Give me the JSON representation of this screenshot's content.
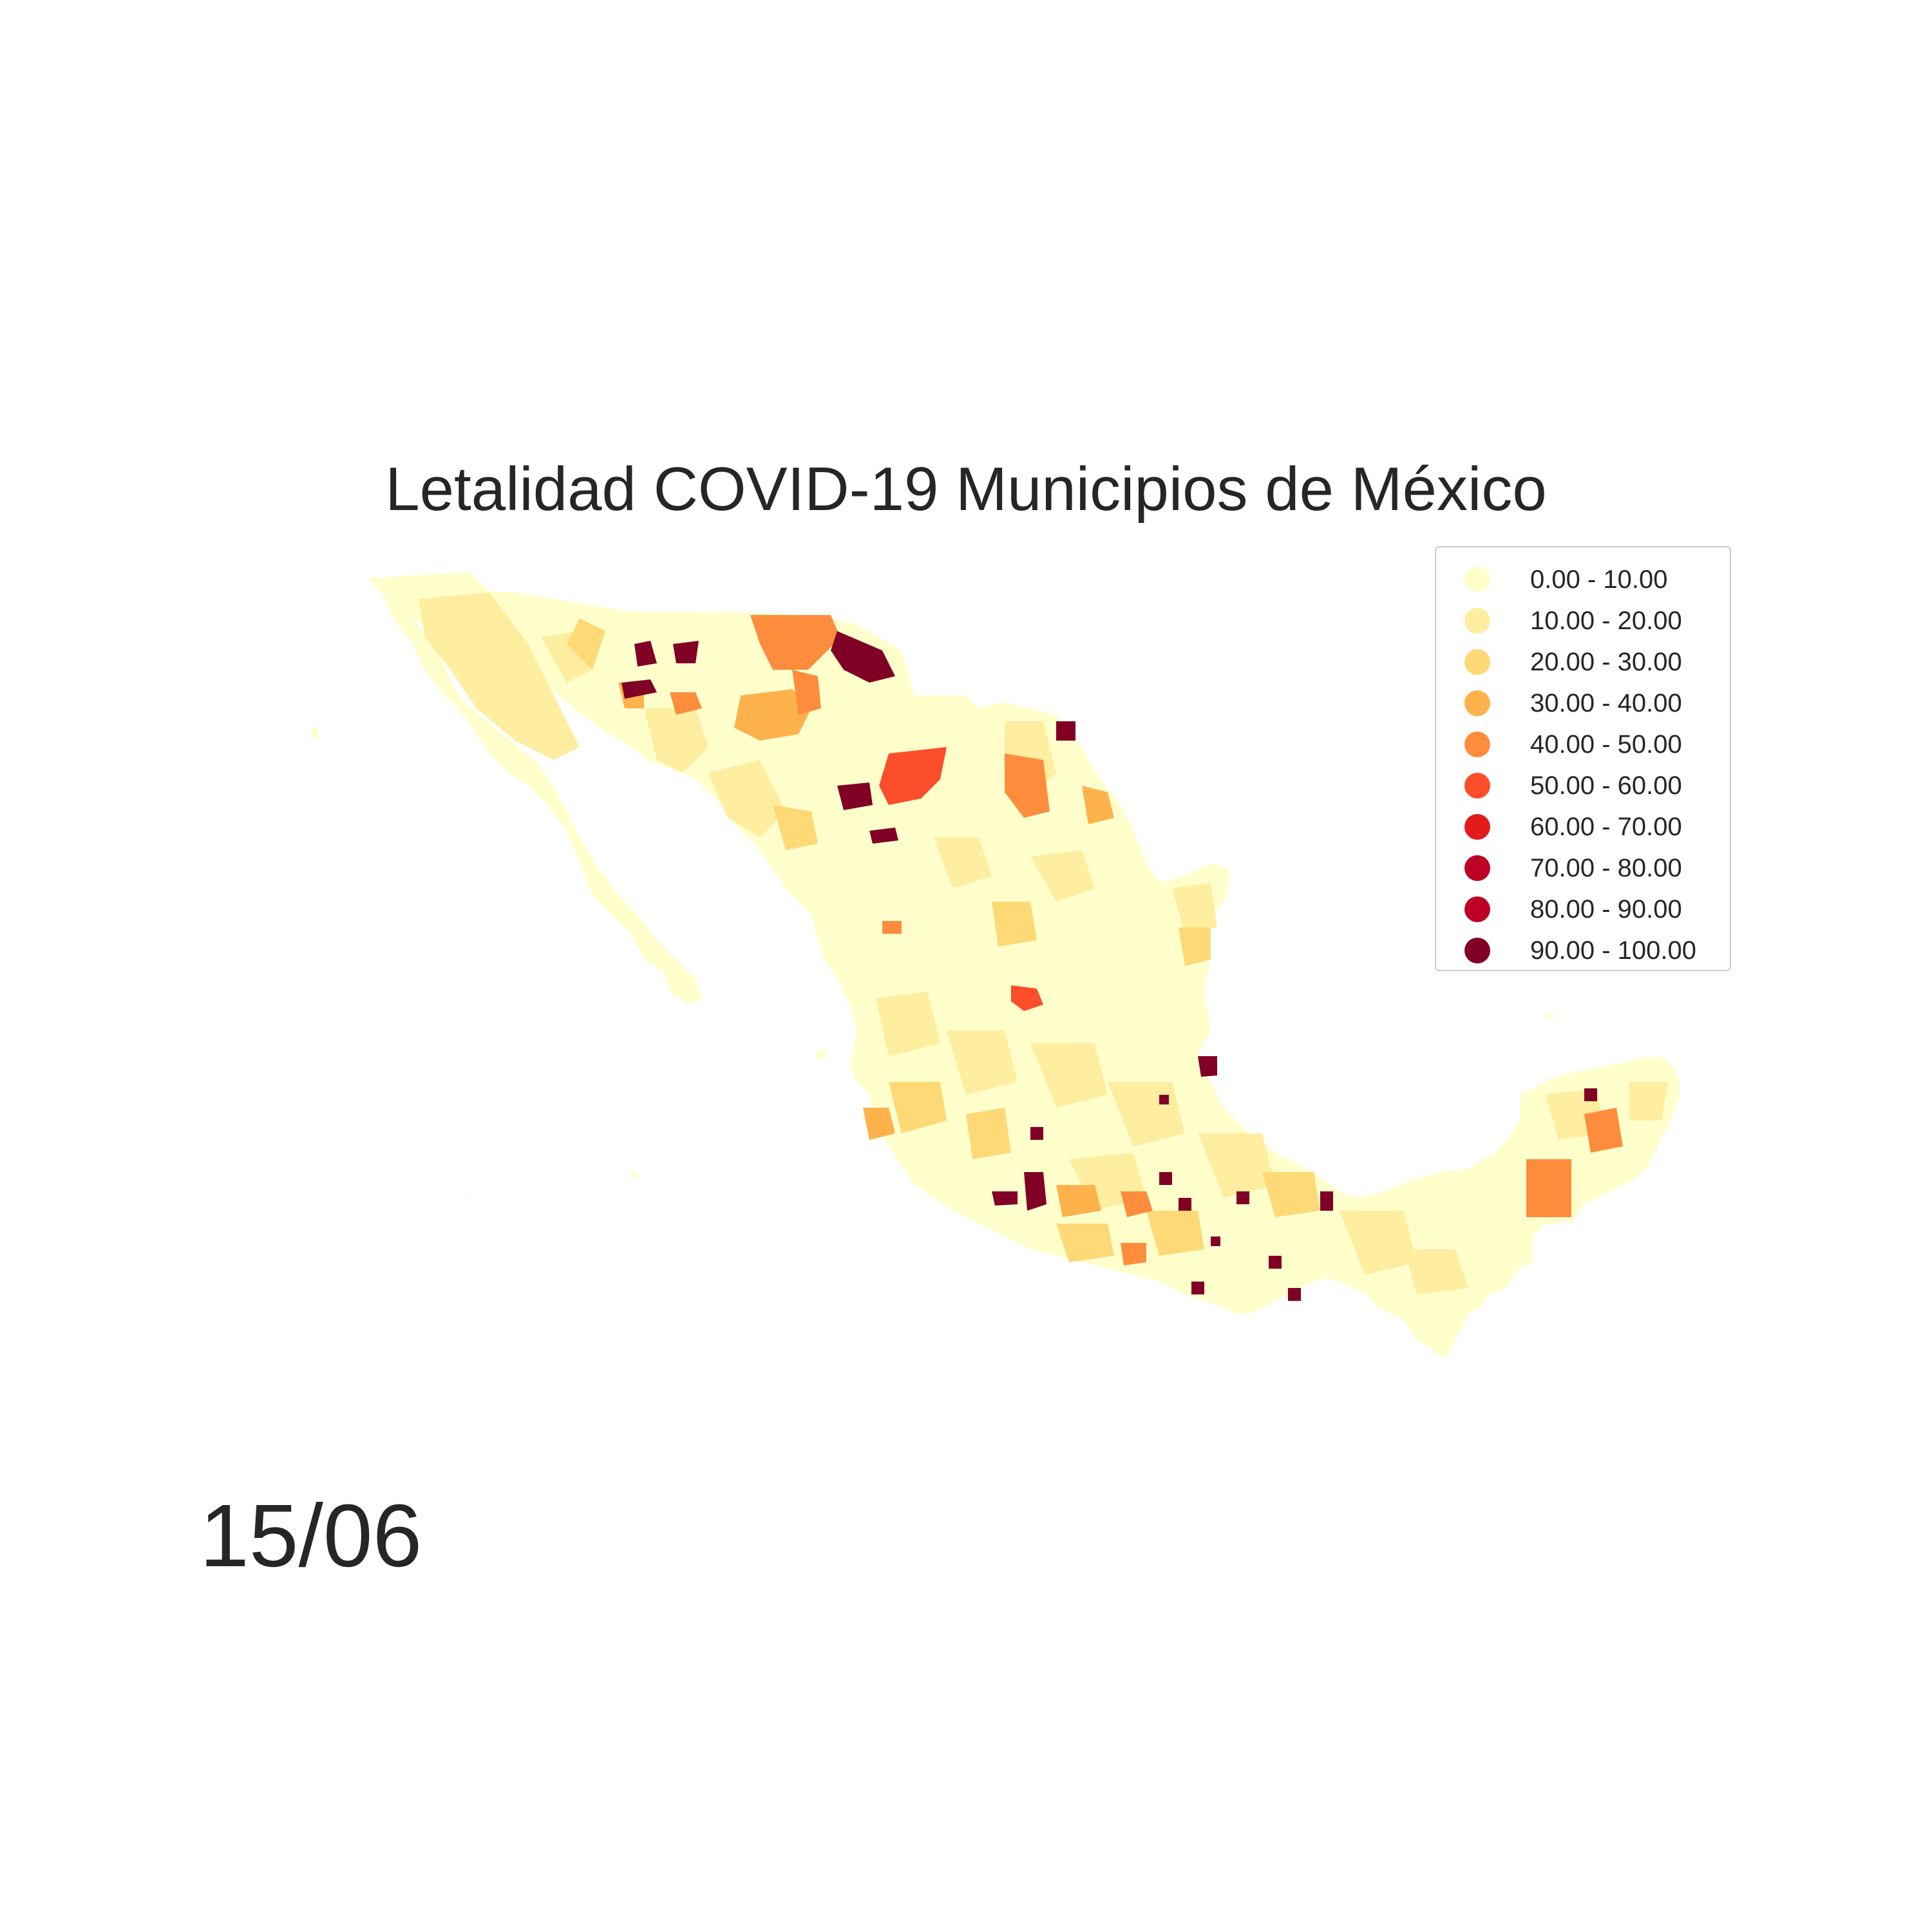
{
  "title": "Letalidad COVID-19 Municipios de México",
  "date_label": "15/06",
  "legend": {
    "items": [
      {
        "label": "0.00 - 10.00",
        "color": "#ffffcc"
      },
      {
        "label": "10.00 - 20.00",
        "color": "#ffeda0"
      },
      {
        "label": "20.00 - 30.00",
        "color": "#fed976"
      },
      {
        "label": "30.00 - 40.00",
        "color": "#feb24c"
      },
      {
        "label": "40.00 - 50.00",
        "color": "#fd8d3c"
      },
      {
        "label": "50.00 - 60.00",
        "color": "#fc4e2a"
      },
      {
        "label": "60.00 - 70.00",
        "color": "#e31a1c"
      },
      {
        "label": "70.00 - 80.00",
        "color": "#bd0026"
      },
      {
        "label": "80.00 - 90.00",
        "color": "#bd0026"
      },
      {
        "label": "90.00 - 100.00",
        "color": "#800026"
      }
    ]
  }
}
